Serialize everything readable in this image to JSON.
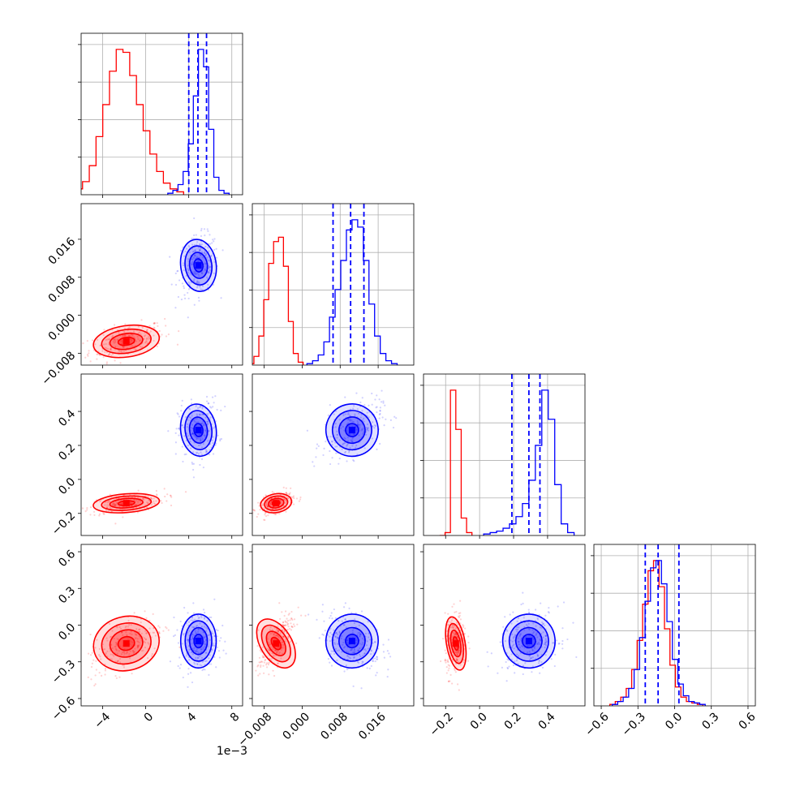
{
  "chart_data": {
    "type": "corner",
    "title": "",
    "x_offset_label": "1e−3",
    "colors": {
      "red": "#ff0000",
      "blue": "#0000ff",
      "grid": "#b0b0b0",
      "axis": "#000000"
    },
    "grid": true,
    "params": [
      {
        "range": [
          -6.0,
          9.0
        ],
        "ticks": [
          -4,
          0,
          4,
          8
        ],
        "tick_labels": [
          "−4",
          "0",
          "4",
          "8"
        ]
      },
      {
        "range": [
          -0.0105,
          0.0235
        ],
        "ticks": [
          -0.008,
          0.0,
          0.008,
          0.016
        ],
        "tick_labels": [
          "−0.008",
          "0.000",
          "0.008",
          "0.016"
        ]
      },
      {
        "range": [
          -0.33,
          0.62
        ],
        "ticks": [
          -0.2,
          0.0,
          0.2,
          0.4
        ],
        "tick_labels": [
          "−0.2",
          "0.0",
          "0.2",
          "0.4"
        ]
      },
      {
        "range": [
          -0.66,
          0.66
        ],
        "ticks": [
          -0.6,
          -0.3,
          0.0,
          0.3,
          0.6
        ],
        "tick_labels": [
          "−0.6",
          "−0.3",
          "0.0",
          "0.3",
          "0.6"
        ]
      }
    ],
    "series": [
      {
        "color": "red",
        "means": [
          -1.8,
          -0.0055,
          -0.14,
          -0.15
        ],
        "stds": [
          1.4,
          0.0015,
          0.025,
          0.1
        ],
        "histograms": [
          [
            1,
            4,
            9,
            20,
            40,
            62,
            85,
            100,
            98,
            82,
            62,
            44,
            28,
            16,
            8,
            4,
            2
          ],
          [
            1,
            6,
            20,
            45,
            70,
            85,
            88,
            68,
            30,
            8,
            2
          ],
          [
            0,
            2,
            100,
            73,
            12,
            2
          ],
          [
            1,
            3,
            6,
            12,
            25,
            45,
            70,
            93,
            100,
            82,
            53,
            28,
            13,
            6,
            3,
            2,
            1
          ]
        ]
      },
      {
        "color": "blue",
        "means": [
          4.9,
          0.0105,
          0.29,
          -0.13
        ],
        "stds": [
          0.75,
          0.0025,
          0.07,
          0.1
        ],
        "histograms": [
          [
            1,
            3,
            7,
            16,
            35,
            68,
            100,
            88,
            45,
            12,
            3,
            1
          ],
          [
            1,
            3,
            7,
            16,
            33,
            52,
            72,
            93,
            100,
            95,
            72,
            42,
            20,
            8,
            3,
            1
          ],
          [
            1,
            2,
            3,
            5,
            8,
            13,
            22,
            38,
            62,
            100,
            80,
            35,
            8,
            2
          ],
          [
            1,
            3,
            6,
            12,
            25,
            47,
            72,
            95,
            100,
            84,
            58,
            32,
            15,
            7,
            3,
            2,
            1
          ]
        ]
      }
    ],
    "quantile_lines": [
      [
        4.0,
        4.85,
        5.65
      ],
      [
        0.0065,
        0.0102,
        0.013
      ],
      [
        0.19,
        0.29,
        0.355
      ],
      [
        -0.24,
        -0.135,
        0.035
      ]
    ]
  }
}
